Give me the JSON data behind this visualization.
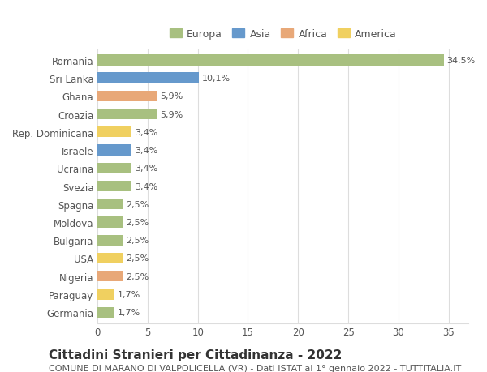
{
  "countries": [
    "Romania",
    "Sri Lanka",
    "Ghana",
    "Croazia",
    "Rep. Dominicana",
    "Israele",
    "Ucraina",
    "Svezia",
    "Spagna",
    "Moldova",
    "Bulgaria",
    "USA",
    "Nigeria",
    "Paraguay",
    "Germania"
  ],
  "values": [
    34.5,
    10.1,
    5.9,
    5.9,
    3.4,
    3.4,
    3.4,
    3.4,
    2.5,
    2.5,
    2.5,
    2.5,
    2.5,
    1.7,
    1.7
  ],
  "labels": [
    "34,5%",
    "10,1%",
    "5,9%",
    "5,9%",
    "3,4%",
    "3,4%",
    "3,4%",
    "3,4%",
    "2,5%",
    "2,5%",
    "2,5%",
    "2,5%",
    "2,5%",
    "1,7%",
    "1,7%"
  ],
  "continents": [
    "Europa",
    "Asia",
    "Africa",
    "Europa",
    "America",
    "Asia",
    "Europa",
    "Europa",
    "Europa",
    "Europa",
    "Europa",
    "America",
    "Africa",
    "America",
    "Europa"
  ],
  "continent_colors": {
    "Europa": "#a8c080",
    "Asia": "#6699cc",
    "Africa": "#e8a878",
    "America": "#f0d060"
  },
  "legend_order": [
    "Europa",
    "Asia",
    "Africa",
    "America"
  ],
  "title": "Cittadini Stranieri per Cittadinanza - 2022",
  "subtitle": "COMUNE DI MARANO DI VALPOLICELLA (VR) - Dati ISTAT al 1° gennaio 2022 - TUTTITALIA.IT",
  "xlim": [
    0,
    37
  ],
  "xticks": [
    0,
    5,
    10,
    15,
    20,
    25,
    30,
    35
  ],
  "background_color": "#ffffff",
  "grid_color": "#dddddd",
  "bar_height": 0.6,
  "title_fontsize": 11,
  "subtitle_fontsize": 8,
  "label_fontsize": 8,
  "tick_fontsize": 8.5,
  "legend_fontsize": 9
}
